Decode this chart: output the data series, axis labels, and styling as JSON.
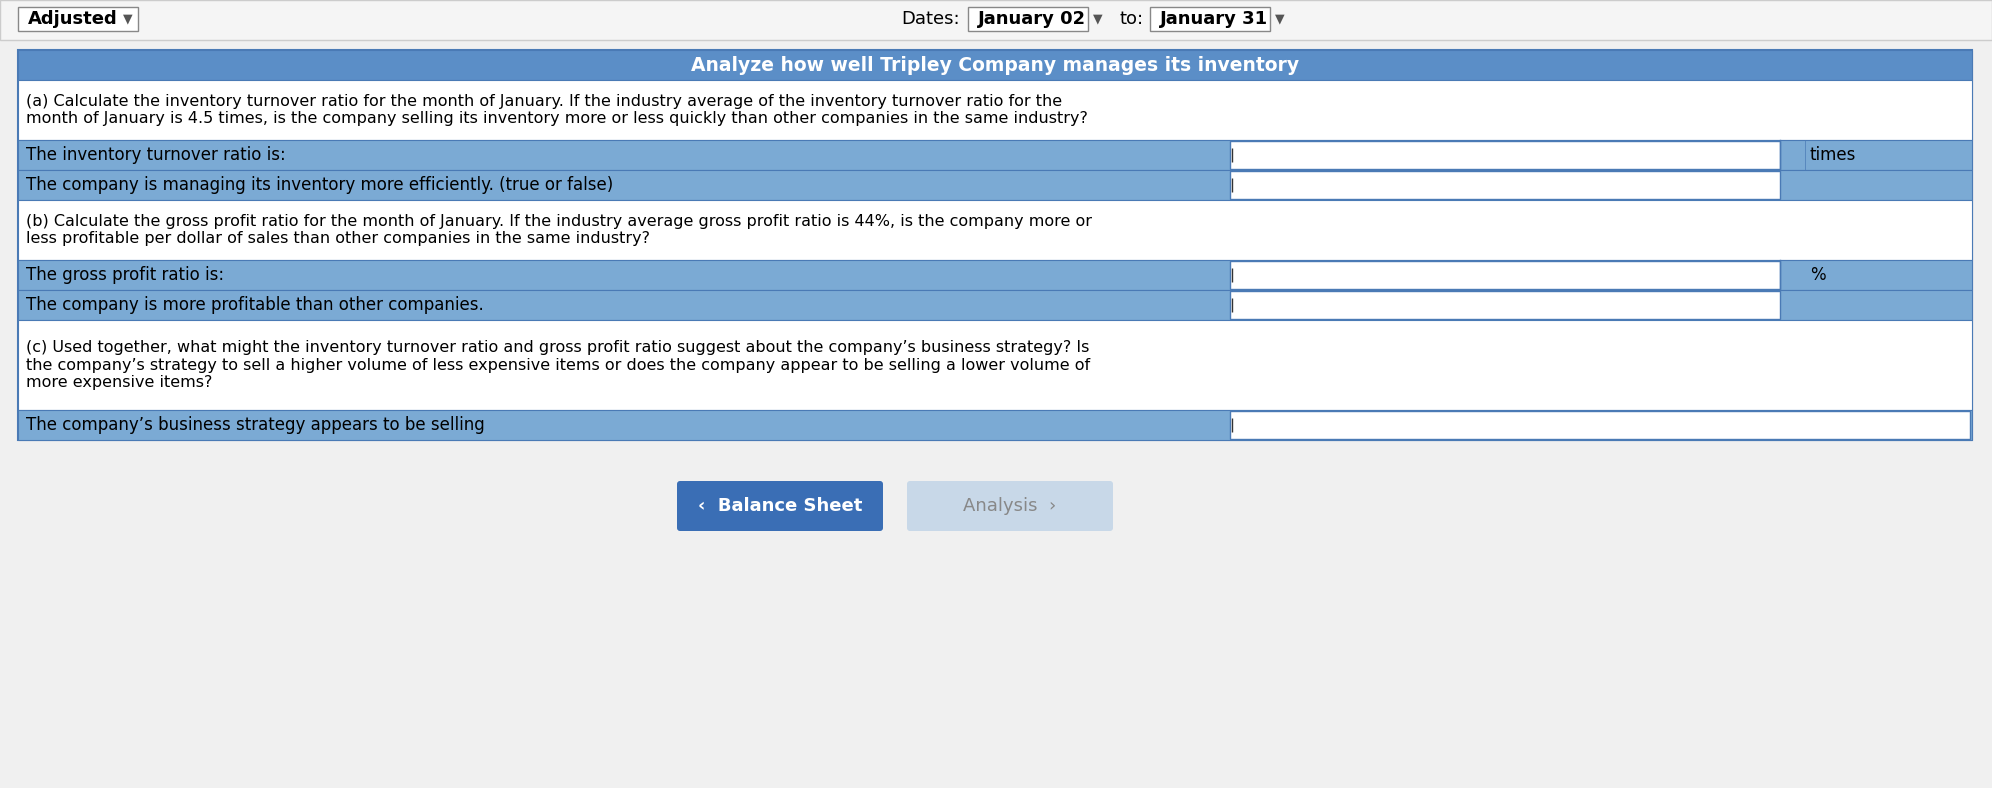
{
  "title": "Analyze how well Tripley Company manages its inventory",
  "header_bg": "#5b8ec7",
  "header_text_color": "#ffffff",
  "row_bg_blue": "#7baad4",
  "row_bg_white": "#ffffff",
  "border_color": "#4a7ab5",
  "outer_bg": "#f0f0f0",
  "top_bar_bg": "#ffffff",
  "adjusted_label": "Adjusted",
  "dates_label": "Dates:",
  "date1": "January 02",
  "date2": "January 31",
  "to_label": "to:",
  "para_a_text": "(a) Calculate the inventory turnover ratio for the month of January. If the industry average of the inventory turnover ratio for the\nmonth of January is 4.5 times, is the company selling its inventory more or less quickly than other companies in the same industry?",
  "row1_label": "The inventory turnover ratio is:",
  "row1_suffix": "times",
  "row2_label": "The company is managing its inventory more efficiently. (true or false)",
  "para_b_text": "(b) Calculate the gross profit ratio for the month of January. If the industry average gross profit ratio is 44%, is the company more or\nless profitable per dollar of sales than other companies in the same industry?",
  "row3_label": "The gross profit ratio is:",
  "row3_suffix": "%",
  "row4_label": "The company is more profitable than other companies.",
  "para_c_text": "(c) Used together, what might the inventory turnover ratio and gross profit ratio suggest about the company’s business strategy? Is\nthe company’s strategy to sell a higher volume of less expensive items or does the company appear to be selling a lower volume of\nmore expensive items?",
  "row5_label": "The company’s business strategy appears to be selling",
  "btn1_label": "‹  Balance Sheet",
  "btn1_bg": "#3a6eb5",
  "btn1_text_color": "#ffffff",
  "btn2_label": "Analysis  ›",
  "btn2_bg": "#c8d8e8",
  "btn2_text_color": "#888888",
  "input_bg": "#ffffff",
  "input_border": "#4a7ab5",
  "font_family": "DejaVu Sans"
}
